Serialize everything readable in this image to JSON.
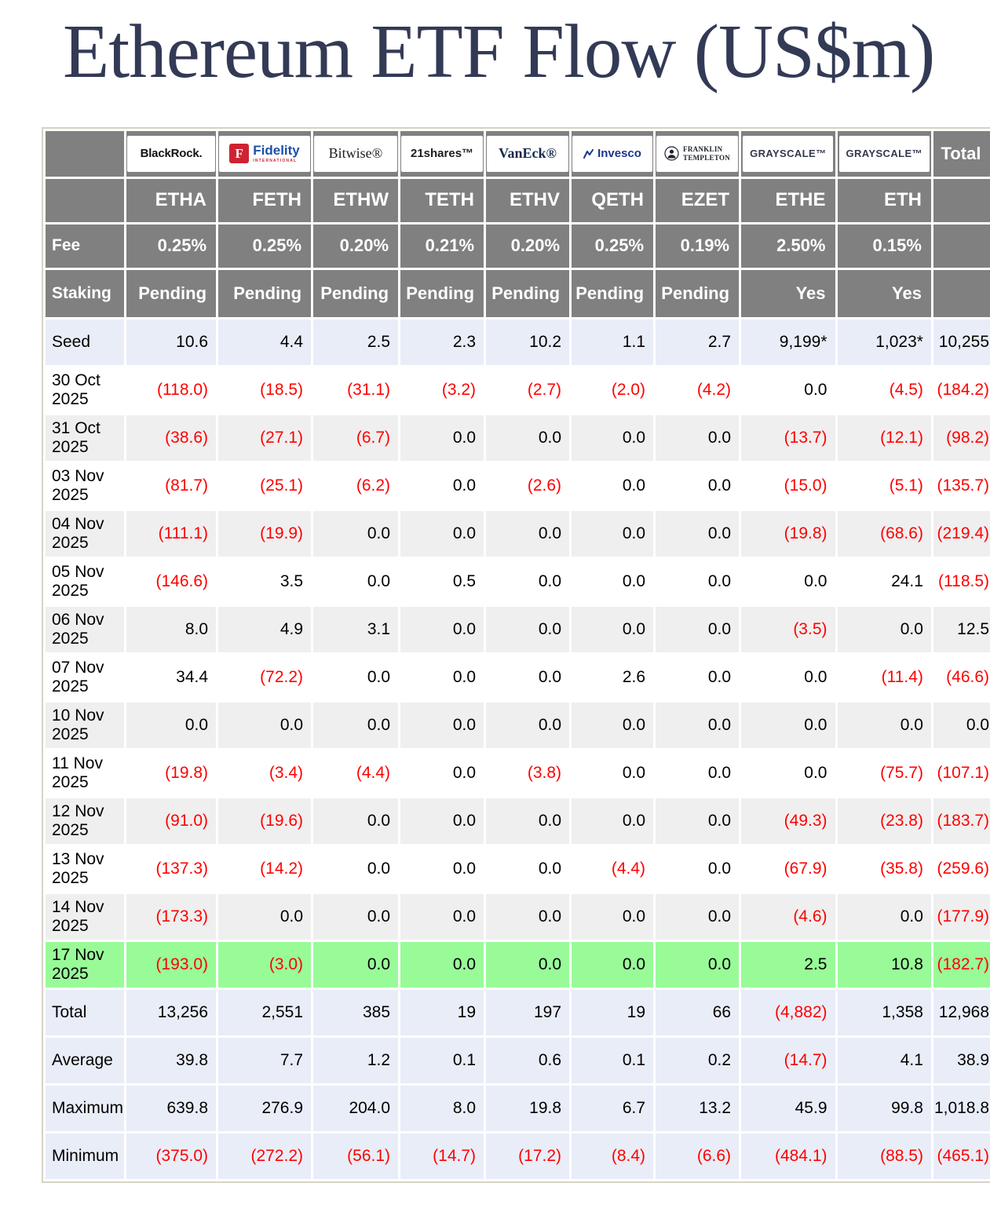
{
  "page": {
    "title": "Ethereum ETF Flow (US$m)"
  },
  "logos": {
    "blackrock": "BlackRock.",
    "fidelity_f": "F",
    "fidelity_name": "Fidelity",
    "fidelity_sub": "INTERNATIONAL",
    "bitwise": "Bitwise®",
    "shares21": "21shares™",
    "vaneck": "VanEck®",
    "invesco": "Invesco",
    "franklin_line1": "FRANKLIN",
    "franklin_line2": "TEMPLETON",
    "grayscale": "GRAYSCALE™",
    "grayscale2": "GRAYSCALE™"
  },
  "table": {
    "total_header": "Total",
    "tickers": [
      "ETHA",
      "FETH",
      "ETHW",
      "TETH",
      "ETHV",
      "QETH",
      "EZET",
      "ETHE",
      "ETH",
      ""
    ],
    "fee_label": "Fee",
    "fees": [
      "0.25%",
      "0.25%",
      "0.20%",
      "0.21%",
      "0.20%",
      "0.25%",
      "0.19%",
      "2.50%",
      "0.15%",
      ""
    ],
    "staking_label": "Staking",
    "staking": [
      "Pending",
      "Pending",
      "Pending",
      "Pending",
      "Pending",
      "Pending",
      "Pending",
      "Yes",
      "Yes",
      ""
    ],
    "header_bg": "#808080",
    "negative_color": "#FF0000",
    "row_colors": {
      "seed": "#E9EDF8",
      "white": "#FFFFFF",
      "stripe": "#EFEFEF",
      "highlight": "#98FB98",
      "summary": "#E9EDF8"
    },
    "rows": [
      {
        "label": "Seed",
        "variant": "seed",
        "values": [
          "10.6",
          "4.4",
          "2.5",
          "2.3",
          "10.2",
          "1.1",
          "2.7",
          "9,199*",
          "1,023*",
          "10,255"
        ]
      },
      {
        "label": "30 Oct 2025",
        "variant": "white",
        "values": [
          "(118.0)",
          "(18.5)",
          "(31.1)",
          "(3.2)",
          "(2.7)",
          "(2.0)",
          "(4.2)",
          "0.0",
          "(4.5)",
          "(184.2)"
        ]
      },
      {
        "label": "31 Oct 2025",
        "variant": "stripe",
        "values": [
          "(38.6)",
          "(27.1)",
          "(6.7)",
          "0.0",
          "0.0",
          "0.0",
          "0.0",
          "(13.7)",
          "(12.1)",
          "(98.2)"
        ]
      },
      {
        "label": "03 Nov 2025",
        "variant": "white",
        "values": [
          "(81.7)",
          "(25.1)",
          "(6.2)",
          "0.0",
          "(2.6)",
          "0.0",
          "0.0",
          "(15.0)",
          "(5.1)",
          "(135.7)"
        ]
      },
      {
        "label": "04 Nov 2025",
        "variant": "stripe",
        "values": [
          "(111.1)",
          "(19.9)",
          "0.0",
          "0.0",
          "0.0",
          "0.0",
          "0.0",
          "(19.8)",
          "(68.6)",
          "(219.4)"
        ]
      },
      {
        "label": "05 Nov 2025",
        "variant": "white",
        "values": [
          "(146.6)",
          "3.5",
          "0.0",
          "0.5",
          "0.0",
          "0.0",
          "0.0",
          "0.0",
          "24.1",
          "(118.5)"
        ]
      },
      {
        "label": "06 Nov 2025",
        "variant": "stripe",
        "values": [
          "8.0",
          "4.9",
          "3.1",
          "0.0",
          "0.0",
          "0.0",
          "0.0",
          "(3.5)",
          "0.0",
          "12.5"
        ]
      },
      {
        "label": "07 Nov 2025",
        "variant": "white",
        "values": [
          "34.4",
          "(72.2)",
          "0.0",
          "0.0",
          "0.0",
          "2.6",
          "0.0",
          "0.0",
          "(11.4)",
          "(46.6)"
        ]
      },
      {
        "label": "10 Nov 2025",
        "variant": "stripe",
        "values": [
          "0.0",
          "0.0",
          "0.0",
          "0.0",
          "0.0",
          "0.0",
          "0.0",
          "0.0",
          "0.0",
          "0.0"
        ]
      },
      {
        "label": "11 Nov 2025",
        "variant": "white",
        "values": [
          "(19.8)",
          "(3.4)",
          "(4.4)",
          "0.0",
          "(3.8)",
          "0.0",
          "0.0",
          "0.0",
          "(75.7)",
          "(107.1)"
        ]
      },
      {
        "label": "12 Nov 2025",
        "variant": "stripe",
        "values": [
          "(91.0)",
          "(19.6)",
          "0.0",
          "0.0",
          "0.0",
          "0.0",
          "0.0",
          "(49.3)",
          "(23.8)",
          "(183.7)"
        ]
      },
      {
        "label": "13 Nov 2025",
        "variant": "white",
        "values": [
          "(137.3)",
          "(14.2)",
          "0.0",
          "0.0",
          "0.0",
          "(4.4)",
          "0.0",
          "(67.9)",
          "(35.8)",
          "(259.6)"
        ]
      },
      {
        "label": "14 Nov 2025",
        "variant": "stripe",
        "values": [
          "(173.3)",
          "0.0",
          "0.0",
          "0.0",
          "0.0",
          "0.0",
          "0.0",
          "(4.6)",
          "0.0",
          "(177.9)"
        ]
      },
      {
        "label": "17 Nov 2025",
        "variant": "highlight",
        "values": [
          "(193.0)",
          "(3.0)",
          "0.0",
          "0.0",
          "0.0",
          "0.0",
          "0.0",
          "2.5",
          "10.8",
          "(182.7)"
        ]
      },
      {
        "label": "Total",
        "variant": "summary",
        "values": [
          "13,256",
          "2,551",
          "385",
          "19",
          "197",
          "19",
          "66",
          "(4,882)",
          "1,358",
          "12,968"
        ]
      },
      {
        "label": "Average",
        "variant": "summary",
        "values": [
          "39.8",
          "7.7",
          "1.2",
          "0.1",
          "0.6",
          "0.1",
          "0.2",
          "(14.7)",
          "4.1",
          "38.9"
        ]
      },
      {
        "label": "Maximum",
        "variant": "summary",
        "values": [
          "639.8",
          "276.9",
          "204.0",
          "8.0",
          "19.8",
          "6.7",
          "13.2",
          "45.9",
          "99.8",
          "1,018.8"
        ]
      },
      {
        "label": "Minimum",
        "variant": "summary",
        "values": [
          "(375.0)",
          "(272.2)",
          "(56.1)",
          "(14.7)",
          "(17.2)",
          "(8.4)",
          "(6.6)",
          "(484.1)",
          "(88.5)",
          "(465.1)"
        ]
      }
    ]
  },
  "chart_data": {
    "type": "table",
    "title": "Ethereum ETF Flow (US$m)",
    "columns": [
      "ETHA",
      "FETH",
      "ETHW",
      "TETH",
      "ETHV",
      "QETH",
      "EZET",
      "ETHE",
      "ETH",
      "Total"
    ],
    "issuers": [
      "BlackRock",
      "Fidelity",
      "Bitwise",
      "21shares",
      "VanEck",
      "Invesco",
      "Franklin Templeton",
      "Grayscale",
      "Grayscale"
    ],
    "fees_pct": [
      0.25,
      0.25,
      0.2,
      0.21,
      0.2,
      0.25,
      0.19,
      2.5,
      0.15
    ],
    "staking": [
      "Pending",
      "Pending",
      "Pending",
      "Pending",
      "Pending",
      "Pending",
      "Pending",
      "Yes",
      "Yes"
    ],
    "rows": [
      {
        "label": "Seed",
        "values": [
          10.6,
          4.4,
          2.5,
          2.3,
          10.2,
          1.1,
          2.7,
          9199,
          1023,
          10255
        ]
      },
      {
        "label": "30 Oct 2025",
        "values": [
          -118.0,
          -18.5,
          -31.1,
          -3.2,
          -2.7,
          -2.0,
          -4.2,
          0.0,
          -4.5,
          -184.2
        ]
      },
      {
        "label": "31 Oct 2025",
        "values": [
          -38.6,
          -27.1,
          -6.7,
          0.0,
          0.0,
          0.0,
          0.0,
          -13.7,
          -12.1,
          -98.2
        ]
      },
      {
        "label": "03 Nov 2025",
        "values": [
          -81.7,
          -25.1,
          -6.2,
          0.0,
          -2.6,
          0.0,
          0.0,
          -15.0,
          -5.1,
          -135.7
        ]
      },
      {
        "label": "04 Nov 2025",
        "values": [
          -111.1,
          -19.9,
          0.0,
          0.0,
          0.0,
          0.0,
          0.0,
          -19.8,
          -68.6,
          -219.4
        ]
      },
      {
        "label": "05 Nov 2025",
        "values": [
          -146.6,
          3.5,
          0.0,
          0.5,
          0.0,
          0.0,
          0.0,
          0.0,
          24.1,
          -118.5
        ]
      },
      {
        "label": "06 Nov 2025",
        "values": [
          8.0,
          4.9,
          3.1,
          0.0,
          0.0,
          0.0,
          0.0,
          -3.5,
          0.0,
          12.5
        ]
      },
      {
        "label": "07 Nov 2025",
        "values": [
          34.4,
          -72.2,
          0.0,
          0.0,
          0.0,
          2.6,
          0.0,
          0.0,
          -11.4,
          -46.6
        ]
      },
      {
        "label": "10 Nov 2025",
        "values": [
          0.0,
          0.0,
          0.0,
          0.0,
          0.0,
          0.0,
          0.0,
          0.0,
          0.0,
          0.0
        ]
      },
      {
        "label": "11 Nov 2025",
        "values": [
          -19.8,
          -3.4,
          -4.4,
          0.0,
          -3.8,
          0.0,
          0.0,
          0.0,
          -75.7,
          -107.1
        ]
      },
      {
        "label": "12 Nov 2025",
        "values": [
          -91.0,
          -19.6,
          0.0,
          0.0,
          0.0,
          0.0,
          0.0,
          -49.3,
          -23.8,
          -183.7
        ]
      },
      {
        "label": "13 Nov 2025",
        "values": [
          -137.3,
          -14.2,
          0.0,
          0.0,
          0.0,
          -4.4,
          0.0,
          -67.9,
          -35.8,
          -259.6
        ]
      },
      {
        "label": "14 Nov 2025",
        "values": [
          -173.3,
          0.0,
          0.0,
          0.0,
          0.0,
          0.0,
          0.0,
          -4.6,
          0.0,
          -177.9
        ]
      },
      {
        "label": "17 Nov 2025",
        "values": [
          -193.0,
          -3.0,
          0.0,
          0.0,
          0.0,
          0.0,
          0.0,
          2.5,
          10.8,
          -182.7
        ]
      },
      {
        "label": "Total",
        "values": [
          13256,
          2551,
          385,
          19,
          197,
          19,
          66,
          -4882,
          1358,
          12968
        ]
      },
      {
        "label": "Average",
        "values": [
          39.8,
          7.7,
          1.2,
          0.1,
          0.6,
          0.1,
          0.2,
          -14.7,
          4.1,
          38.9
        ]
      },
      {
        "label": "Maximum",
        "values": [
          639.8,
          276.9,
          204.0,
          8.0,
          19.8,
          6.7,
          13.2,
          45.9,
          99.8,
          1018.8
        ]
      },
      {
        "label": "Minimum",
        "values": [
          -375.0,
          -272.2,
          -56.1,
          -14.7,
          -17.2,
          -8.4,
          -6.6,
          -484.1,
          -88.5,
          -465.1
        ]
      }
    ],
    "notes": "Negative values shown in red parentheses; 17 Nov 2025 row highlighted green; ETHE and ETH seed values marked with asterisk"
  }
}
